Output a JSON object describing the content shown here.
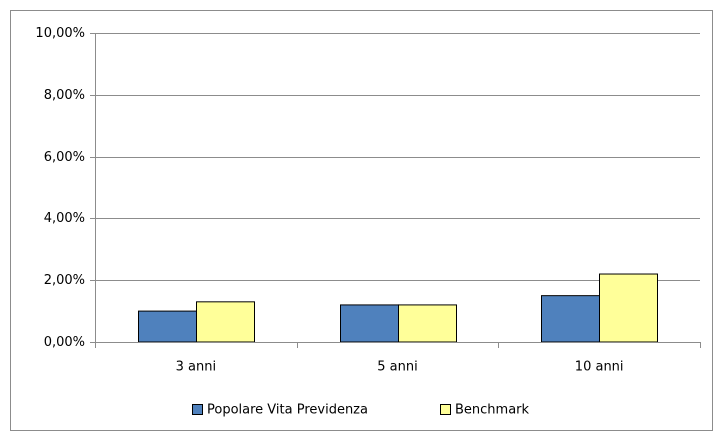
{
  "chart_data": {
    "type": "bar",
    "categories": [
      "3 anni",
      "5 anni",
      "10 anni"
    ],
    "series": [
      {
        "name": "Popolare Vita Previdenza",
        "color": "#4f81bd",
        "values": [
          1.0,
          1.2,
          1.5
        ]
      },
      {
        "name": "Benchmark",
        "color": "#ffff99",
        "values": [
          1.3,
          1.2,
          2.2
        ]
      }
    ],
    "ylim": [
      0,
      10
    ],
    "yticks": [
      {
        "value": 0,
        "label": "0,00%"
      },
      {
        "value": 2,
        "label": "2,00%"
      },
      {
        "value": 4,
        "label": "4,00%"
      },
      {
        "value": 6,
        "label": "6,00%"
      },
      {
        "value": 8,
        "label": "8,00%"
      },
      {
        "value": 10,
        "label": "10,00%"
      }
    ],
    "grid": true,
    "legend": "bottom"
  }
}
